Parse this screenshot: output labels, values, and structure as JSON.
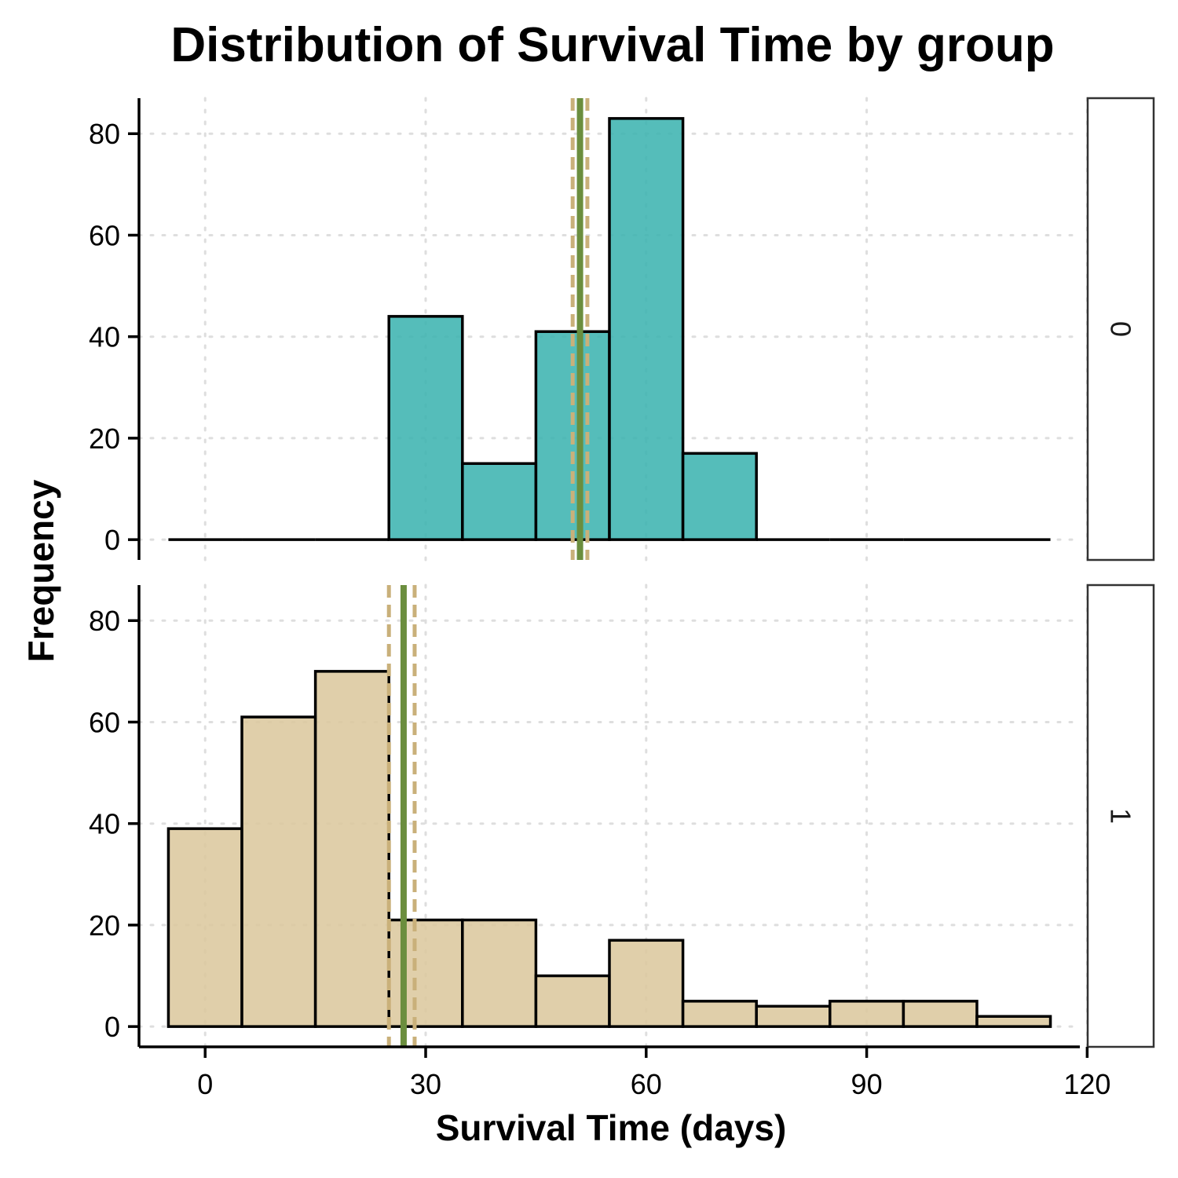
{
  "chart_data": {
    "type": "bar",
    "title": "Distribution of Survival Time by group",
    "xlabel": "Survival Time (days)",
    "ylabel": "Frequency",
    "xlim": [
      -9,
      119
    ],
    "xticks": [
      0,
      30,
      60,
      90,
      120
    ],
    "ylim": [
      -4,
      87
    ],
    "yticks": [
      0,
      20,
      40,
      60,
      80
    ],
    "grid": "dotted",
    "bin_width": 10,
    "bin_centers": [
      0,
      10,
      20,
      30,
      40,
      50,
      60,
      70,
      80,
      90,
      100,
      110
    ],
    "colors": {
      "line": "#6B8E3E",
      "dashed": "#C9B07A"
    },
    "facets": [
      {
        "label": "0",
        "fill": "#3DB4B0",
        "values": [
          0,
          0,
          0,
          44,
          15,
          41,
          83,
          17,
          0,
          0,
          0,
          0
        ],
        "center_line": 51,
        "dashed_lines": [
          50,
          52
        ]
      },
      {
        "label": "1",
        "fill": "#DCC89E",
        "values": [
          39,
          61,
          70,
          21,
          21,
          10,
          17,
          5,
          4,
          5,
          5,
          2
        ],
        "center_line": 27,
        "dashed_lines": [
          25,
          28.5
        ]
      }
    ]
  }
}
